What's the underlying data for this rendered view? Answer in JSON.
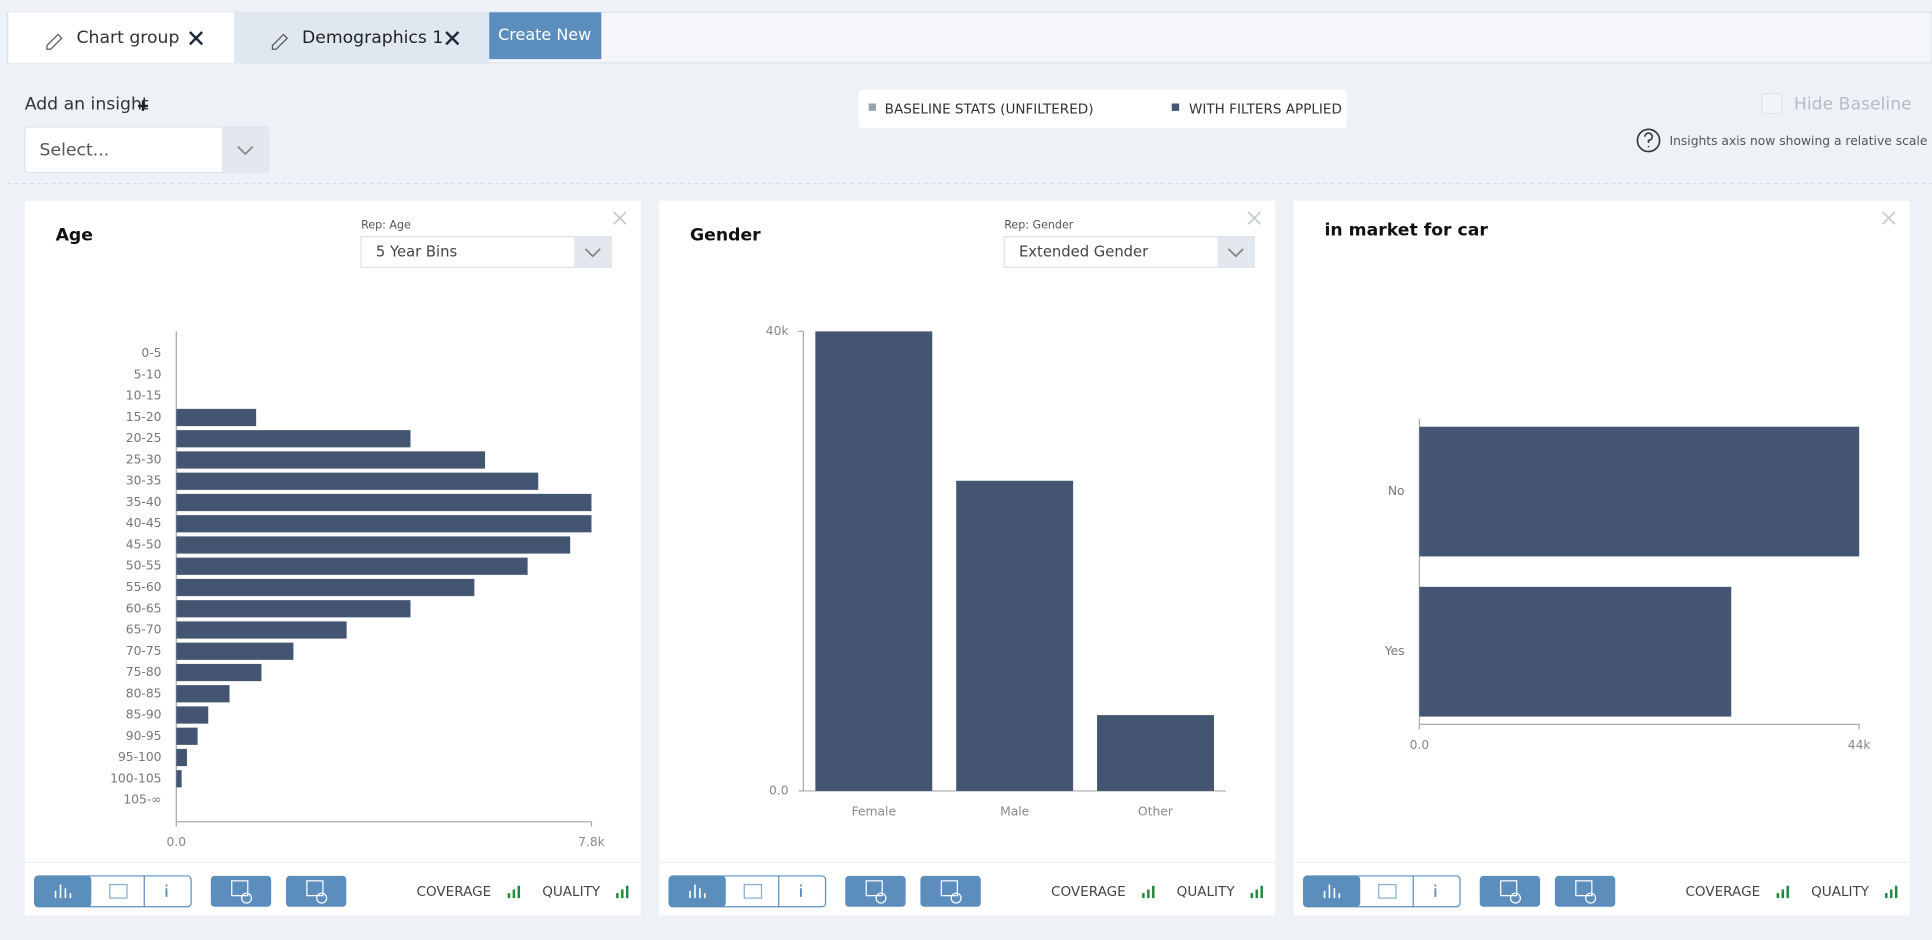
{
  "tabs": [
    {
      "label": "Chart group"
    },
    {
      "label": "Demographics 1"
    }
  ],
  "create_button": "Create New",
  "add_insight": "Add an insight",
  "select_placeholder": "Select...",
  "legend": {
    "baseline": "BASELINE STATS (UNFILTERED)",
    "filtered": "WITH FILTERS APPLIED"
  },
  "hide_baseline": "Hide Baseline",
  "axis_note": "Insights axis now showing a relative scale",
  "footer": {
    "coverage": "COVERAGE",
    "quality": "QUALITY"
  },
  "chart_data": [
    {
      "type": "bar",
      "horizontal": true,
      "title": "Age",
      "rep_label": "Rep: Age",
      "rep_value": "5 Year Bins",
      "color": "#435570",
      "categories": [
        "0-5",
        "5-10",
        "10-15",
        "15-20",
        "20-25",
        "25-30",
        "30-35",
        "35-40",
        "40-45",
        "45-50",
        "50-55",
        "55-60",
        "60-65",
        "65-70",
        "70-75",
        "75-80",
        "80-85",
        "85-90",
        "90-95",
        "95-100",
        "100-105",
        "105-∞"
      ],
      "values": [
        0,
        0,
        0,
        1500,
        4400,
        5800,
        6800,
        7800,
        7800,
        7400,
        6600,
        5600,
        4400,
        3200,
        2200,
        1600,
        1000,
        600,
        400,
        200,
        100,
        0
      ],
      "xlim": [
        0,
        7800
      ],
      "xticks": [
        {
          "value": 0,
          "label": "0.0"
        },
        {
          "value": 7800,
          "label": "7.8k"
        }
      ]
    },
    {
      "type": "bar",
      "horizontal": false,
      "title": "Gender",
      "rep_label": "Rep: Gender",
      "rep_value": "Extended Gender",
      "color": "#435570",
      "categories": [
        "Female",
        "Male",
        "Other"
      ],
      "values": [
        40000,
        27000,
        6600
      ],
      "ylim": [
        0,
        40000
      ],
      "yticks": [
        {
          "value": 0,
          "label": "0.0"
        },
        {
          "value": 40000,
          "label": "40k"
        }
      ]
    },
    {
      "type": "bar",
      "horizontal": true,
      "title": "in market for car",
      "color": "#435570",
      "categories": [
        "No",
        "Yes"
      ],
      "values": [
        44000,
        31200
      ],
      "xlim": [
        0,
        44000
      ],
      "xticks": [
        {
          "value": 0,
          "label": "0.0"
        },
        {
          "value": 44000,
          "label": "44k"
        }
      ]
    }
  ]
}
